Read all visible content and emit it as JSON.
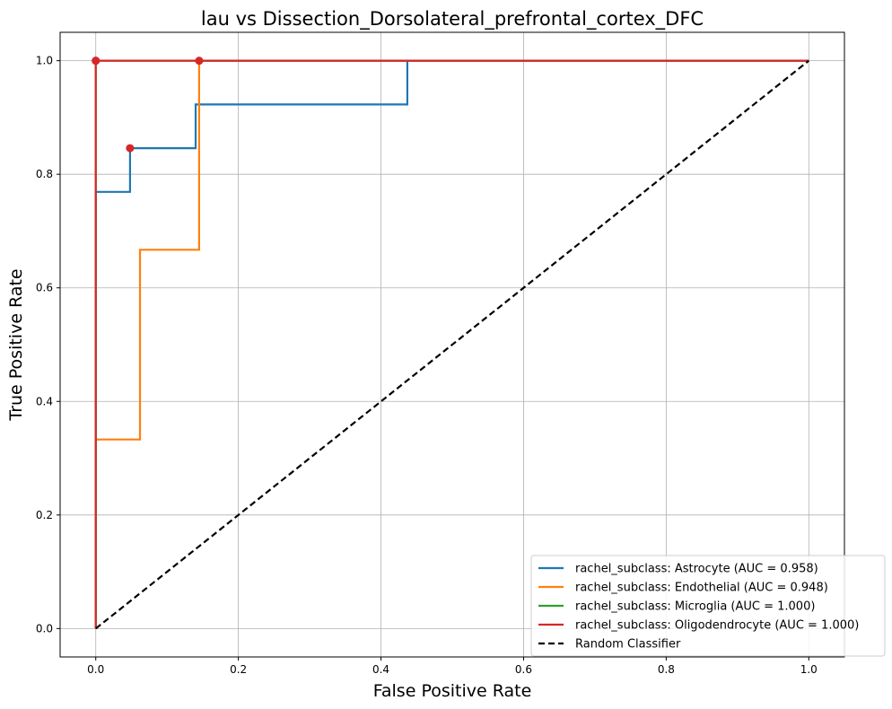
{
  "chart_data": {
    "type": "line",
    "title": "lau vs Dissection_Dorsolateral_prefrontal_cortex_DFC",
    "xlabel": "False Positive Rate",
    "ylabel": "True Positive Rate",
    "xlim": [
      -0.05,
      1.05
    ],
    "ylim": [
      -0.05,
      1.05
    ],
    "xticks": [
      0.0,
      0.2,
      0.4,
      0.6,
      0.8,
      1.0
    ],
    "yticks": [
      0.0,
      0.2,
      0.4,
      0.6,
      0.8,
      1.0
    ],
    "xtick_labels": [
      "0.0",
      "0.2",
      "0.4",
      "0.6",
      "0.8",
      "1.0"
    ],
    "ytick_labels": [
      "0.0",
      "0.2",
      "0.4",
      "0.6",
      "0.8",
      "1.0"
    ],
    "grid": true,
    "legend_position": "bottom-right",
    "series": [
      {
        "name": "rachel_subclass: Astrocyte (AUC = 0.958)",
        "color": "#1f77b4",
        "style": "solid",
        "x": [
          0,
          0,
          0,
          0.048,
          0.048,
          0.14,
          0.14,
          0.437,
          0.437,
          1.0
        ],
        "y": [
          0,
          0,
          0.769,
          0.769,
          0.846,
          0.846,
          0.923,
          0.923,
          1.0,
          1.0
        ],
        "marker": [
          0.048,
          0.846
        ]
      },
      {
        "name": "rachel_subclass: Endothelial (AUC = 0.948)",
        "color": "#ff7f0e",
        "style": "solid",
        "x": [
          0,
          0,
          0,
          0.062,
          0.062,
          0.145,
          0.145,
          1.0
        ],
        "y": [
          0,
          0,
          0.333,
          0.333,
          0.667,
          0.667,
          1.0,
          1.0
        ],
        "marker": [
          0.145,
          1.0
        ]
      },
      {
        "name": "rachel_subclass: Microglia (AUC = 1.000)",
        "color": "#2ca02c",
        "style": "solid",
        "x": [
          0,
          0,
          1.0
        ],
        "y": [
          0,
          1.0,
          1.0
        ],
        "marker": [
          0,
          1.0
        ]
      },
      {
        "name": "rachel_subclass: Oligodendrocyte (AUC = 1.000)",
        "color": "#d62728",
        "style": "solid",
        "x": [
          0,
          0,
          1.0
        ],
        "y": [
          0,
          1.0,
          1.0
        ],
        "marker": [
          0,
          1.0
        ]
      },
      {
        "name": "Random Classifier",
        "color": "#000000",
        "style": "dashed",
        "x": [
          0,
          1.0
        ],
        "y": [
          0,
          1.0
        ]
      }
    ],
    "marker_color": "#d62728"
  }
}
